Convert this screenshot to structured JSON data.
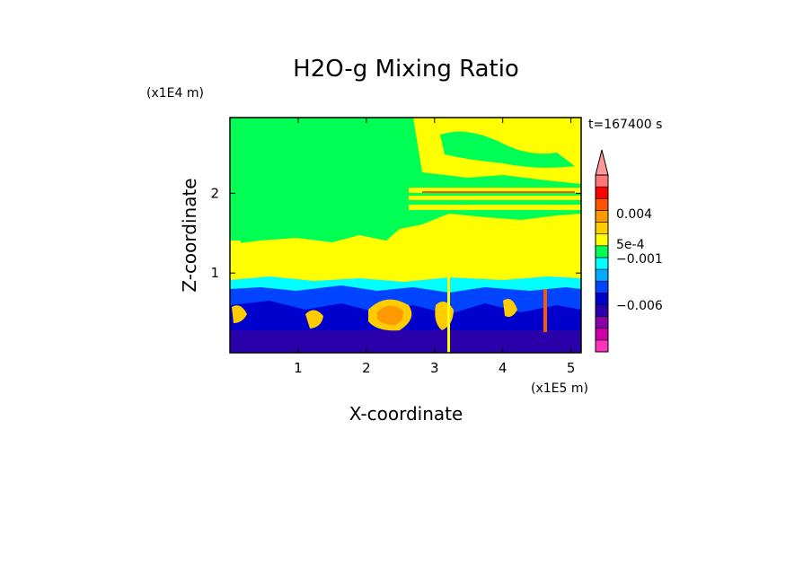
{
  "chart_data": {
    "type": "heatmap",
    "title": "H2O-g Mixing Ratio",
    "xlabel": "X-coordinate",
    "ylabel": "Z-coordinate",
    "x_unit": "(x1E5 m)",
    "y_unit": "(x1E4 m)",
    "time_label": "t=167400 s",
    "xlim": [
      0,
      5.15
    ],
    "ylim": [
      0,
      2.95
    ],
    "x_ticks": [
      "1",
      "2",
      "3",
      "4",
      "5"
    ],
    "y_ticks": [
      "1",
      "2"
    ],
    "colorbar": {
      "labels": [
        "0.004",
        "5e-4",
        "−0.001",
        "−0.006"
      ],
      "colors": [
        "#ff33bb",
        "#cc00aa",
        "#8800aa",
        "#2a00aa",
        "#0000cc",
        "#0044ff",
        "#00aaff",
        "#00ffff",
        "#00ff55",
        "#ffff00",
        "#ffcc00",
        "#ff9900",
        "#ff5500",
        "#ff0000",
        "#ff7777"
      ],
      "extend": "max"
    }
  }
}
